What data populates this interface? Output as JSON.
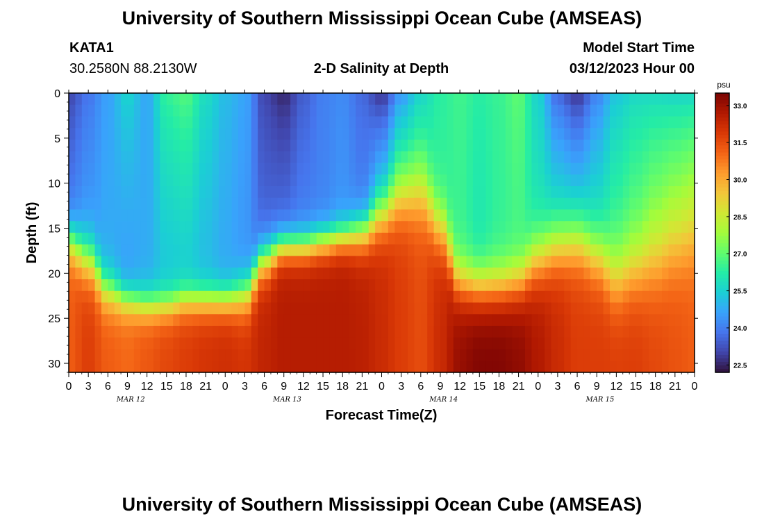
{
  "header": {
    "title": "University of Southern Mississippi Ocean Cube (AMSEAS)",
    "station_id": "KATA1",
    "station_coords": "30.2580N  88.2130W",
    "subtitle": "2-D Salinity at Depth",
    "model_label": "Model Start Time",
    "model_start": "03/12/2023 Hour 00"
  },
  "footer": {
    "title_repeat": "University of Southern Mississippi Ocean Cube (AMSEAS)"
  },
  "chart_data": {
    "type": "heatmap",
    "title": "2-D Salinity at Depth",
    "xlabel": "Forecast Time(Z)",
    "ylabel": "Depth (ft)",
    "x_range_hours": [
      0,
      96
    ],
    "y_range_ft": [
      0,
      31
    ],
    "x_ticks": [
      "0",
      "3",
      "6",
      "9",
      "12",
      "15",
      "18",
      "21",
      "0",
      "3",
      "6",
      "9",
      "12",
      "15",
      "18",
      "21",
      "0",
      "3",
      "6",
      "9",
      "12",
      "15",
      "18",
      "21",
      "0",
      "3",
      "6",
      "9",
      "12",
      "15",
      "18",
      "21",
      "0"
    ],
    "y_ticks": [
      "0",
      "5",
      "10",
      "15",
      "20",
      "25",
      "30"
    ],
    "day_labels": [
      "MAR 12",
      "MAR 13",
      "MAR 14",
      "MAR 15"
    ],
    "colorbar": {
      "unit": "psu",
      "range": [
        22.2,
        33.5
      ],
      "ticks": [
        "33.0",
        "31.5",
        "30.0",
        "28.5",
        "27.0",
        "25.5",
        "24.0",
        "22.5"
      ]
    },
    "palette": [
      "#30123b",
      "#4145ab",
      "#4675ed",
      "#39a2fc",
      "#1bcfd4",
      "#24eca6",
      "#61fc6c",
      "#a4fc3b",
      "#d1e834",
      "#f3c63a",
      "#fe9b2d",
      "#f36315",
      "#d93806",
      "#b11901",
      "#7a0403"
    ],
    "depth_steps_ft": 24,
    "columns": [
      {
        "t": 0,
        "thermocline_ft": 16.5,
        "width_ft": 2.5,
        "surface_psu": 23.0,
        "upper_psu": 24.0,
        "bottom_psu": 31.2
      },
      {
        "t": 3,
        "thermocline_ft": 18.5,
        "width_ft": 3.0,
        "surface_psu": 23.8,
        "upper_psu": 24.5,
        "bottom_psu": 31.8
      },
      {
        "t": 6,
        "thermocline_ft": 22.0,
        "width_ft": 2.5,
        "surface_psu": 24.6,
        "upper_psu": 24.8,
        "bottom_psu": 31.2
      },
      {
        "t": 9,
        "thermocline_ft": 23.0,
        "width_ft": 2.0,
        "surface_psu": 25.6,
        "upper_psu": 24.5,
        "bottom_psu": 31.0
      },
      {
        "t": 12,
        "thermocline_ft": 23.5,
        "width_ft": 2.0,
        "surface_psu": 24.7,
        "upper_psu": 24.8,
        "bottom_psu": 31.3
      },
      {
        "t": 15,
        "thermocline_ft": 23.5,
        "width_ft": 2.0,
        "surface_psu": 26.5,
        "upper_psu": 25.2,
        "bottom_psu": 31.6
      },
      {
        "t": 18,
        "thermocline_ft": 23.0,
        "width_ft": 2.0,
        "surface_psu": 26.9,
        "upper_psu": 25.3,
        "bottom_psu": 31.8
      },
      {
        "t": 21,
        "thermocline_ft": 23.0,
        "width_ft": 2.0,
        "surface_psu": 25.8,
        "upper_psu": 25.0,
        "bottom_psu": 32.0
      },
      {
        "t": 24,
        "thermocline_ft": 23.0,
        "width_ft": 2.0,
        "surface_psu": 25.1,
        "upper_psu": 24.7,
        "bottom_psu": 32.1
      },
      {
        "t": 27,
        "thermocline_ft": 22.5,
        "width_ft": 2.5,
        "surface_psu": 24.7,
        "upper_psu": 24.4,
        "bottom_psu": 32.0
      },
      {
        "t": 30,
        "thermocline_ft": 18.5,
        "width_ft": 2.5,
        "surface_psu": 23.0,
        "upper_psu": 23.6,
        "bottom_psu": 32.4
      },
      {
        "t": 33,
        "thermocline_ft": 17.0,
        "width_ft": 2.0,
        "surface_psu": 22.5,
        "upper_psu": 23.7,
        "bottom_psu": 32.6
      },
      {
        "t": 36,
        "thermocline_ft": 17.0,
        "width_ft": 2.0,
        "surface_psu": 23.4,
        "upper_psu": 24.0,
        "bottom_psu": 32.6
      },
      {
        "t": 39,
        "thermocline_ft": 16.5,
        "width_ft": 2.0,
        "surface_psu": 24.0,
        "upper_psu": 24.1,
        "bottom_psu": 32.6
      },
      {
        "t": 42,
        "thermocline_ft": 16.0,
        "width_ft": 2.0,
        "surface_psu": 24.2,
        "upper_psu": 24.4,
        "bottom_psu": 32.6
      },
      {
        "t": 45,
        "thermocline_ft": 15.5,
        "width_ft": 2.5,
        "surface_psu": 23.6,
        "upper_psu": 24.0,
        "bottom_psu": 32.5
      },
      {
        "t": 48,
        "thermocline_ft": 13.5,
        "width_ft": 3.0,
        "surface_psu": 22.6,
        "upper_psu": 25.0,
        "bottom_psu": 32.2
      },
      {
        "t": 51,
        "thermocline_ft": 11.5,
        "width_ft": 3.5,
        "surface_psu": 24.3,
        "upper_psu": 26.2,
        "bottom_psu": 31.8
      },
      {
        "t": 54,
        "thermocline_ft": 11.0,
        "width_ft": 4.0,
        "surface_psu": 25.5,
        "upper_psu": 26.4,
        "bottom_psu": 31.5
      },
      {
        "t": 57,
        "thermocline_ft": 15.0,
        "width_ft": 3.5,
        "surface_psu": 26.3,
        "upper_psu": 26.4,
        "bottom_psu": 32.2
      },
      {
        "t": 60,
        "thermocline_ft": 21.0,
        "width_ft": 3.0,
        "surface_psu": 26.6,
        "upper_psu": 26.5,
        "bottom_psu": 33.1
      },
      {
        "t": 63,
        "thermocline_ft": 21.5,
        "width_ft": 3.0,
        "surface_psu": 26.3,
        "upper_psu": 26.0,
        "bottom_psu": 33.4
      },
      {
        "t": 66,
        "thermocline_ft": 21.5,
        "width_ft": 3.0,
        "surface_psu": 26.5,
        "upper_psu": 26.4,
        "bottom_psu": 33.4
      },
      {
        "t": 69,
        "thermocline_ft": 21.0,
        "width_ft": 3.0,
        "surface_psu": 27.0,
        "upper_psu": 26.6,
        "bottom_psu": 33.2
      },
      {
        "t": 72,
        "thermocline_ft": 18.5,
        "width_ft": 3.5,
        "surface_psu": 25.5,
        "upper_psu": 26.0,
        "bottom_psu": 32.7
      },
      {
        "t": 75,
        "thermocline_ft": 17.0,
        "width_ft": 3.5,
        "surface_psu": 23.5,
        "upper_psu": 25.6,
        "bottom_psu": 32.2
      },
      {
        "t": 78,
        "thermocline_ft": 16.5,
        "width_ft": 3.5,
        "surface_psu": 22.6,
        "upper_psu": 25.4,
        "bottom_psu": 31.8
      },
      {
        "t": 81,
        "thermocline_ft": 18.0,
        "width_ft": 3.5,
        "surface_psu": 24.0,
        "upper_psu": 25.8,
        "bottom_psu": 31.8
      },
      {
        "t": 84,
        "thermocline_ft": 20.5,
        "width_ft": 4.0,
        "surface_psu": 25.2,
        "upper_psu": 26.6,
        "bottom_psu": 31.8
      },
      {
        "t": 87,
        "thermocline_ft": 19.5,
        "width_ft": 4.0,
        "surface_psu": 25.6,
        "upper_psu": 27.0,
        "bottom_psu": 31.8
      },
      {
        "t": 90,
        "thermocline_ft": 18.5,
        "width_ft": 4.5,
        "surface_psu": 25.6,
        "upper_psu": 27.4,
        "bottom_psu": 31.6
      },
      {
        "t": 93,
        "thermocline_ft": 17.0,
        "width_ft": 4.5,
        "surface_psu": 25.5,
        "upper_psu": 27.6,
        "bottom_psu": 31.4
      },
      {
        "t": 96,
        "thermocline_ft": 16.0,
        "width_ft": 4.5,
        "surface_psu": 25.5,
        "upper_psu": 27.8,
        "bottom_psu": 31.2
      }
    ]
  }
}
